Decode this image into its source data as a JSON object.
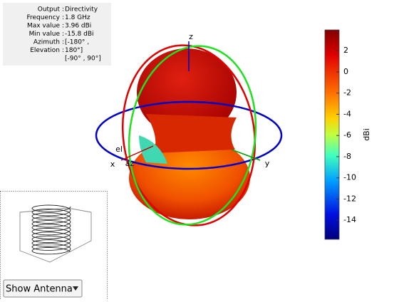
{
  "info": {
    "rows": [
      [
        "Output",
        "Directivity"
      ],
      [
        "Frequency",
        "1.8 GHz"
      ],
      [
        "Max value",
        "3.96 dBi"
      ],
      [
        "Min value",
        "-15.8 dBi"
      ],
      [
        "Azimuth",
        "[-180° ,"
      ],
      [
        "Elevation",
        "180°]"
      ]
    ],
    "extra": "[-90° , 90°]"
  },
  "axes": {
    "x": "x",
    "y": "y",
    "z": "z",
    "az": "az",
    "el": "el"
  },
  "colorbar": {
    "label": "dBi",
    "lim": [
      -15.8,
      3.96
    ],
    "ticks": [
      2,
      0,
      -2,
      -4,
      -6,
      -8,
      -10,
      -12,
      -14
    ]
  },
  "control": {
    "label": "Show Antenna"
  }
}
